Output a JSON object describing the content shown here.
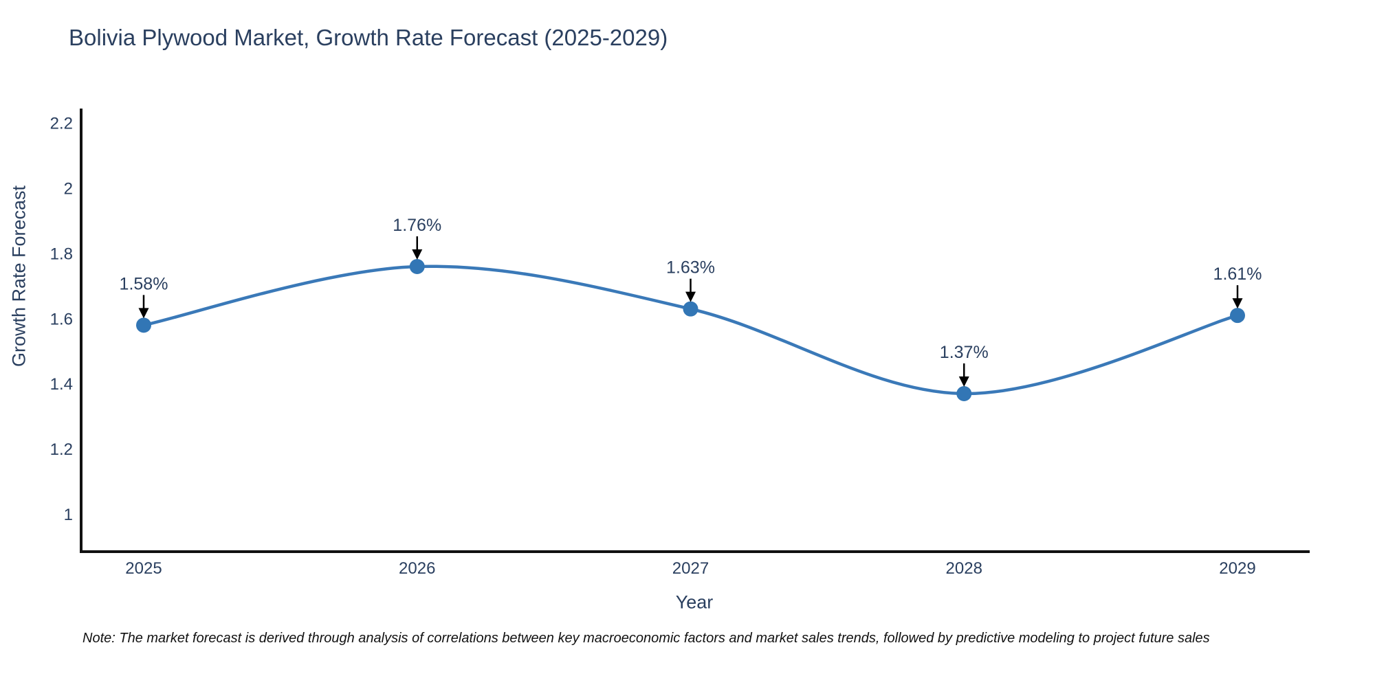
{
  "title": "Bolivia Plywood Market, Growth Rate Forecast (2025-2029)",
  "note": "Note: The market forecast is derived through analysis of correlations between key macroeconomic factors and market sales trends, followed by predictive modeling to project future sales",
  "chart_data": {
    "type": "line",
    "line_shape": "spline",
    "title": "Bolivia Plywood Market, Growth Rate Forecast (2025-2029)",
    "xlabel": "Year",
    "ylabel": "Growth Rate Forecast",
    "categories": [
      "2025",
      "2026",
      "2027",
      "2028",
      "2029"
    ],
    "series": [
      {
        "name": "Growth Rate Forecast",
        "values": [
          1.58,
          1.76,
          1.63,
          1.37,
          1.61
        ]
      }
    ],
    "point_labels": [
      "1.58%",
      "1.76%",
      "1.63%",
      "1.37%",
      "1.61%"
    ],
    "annotations_style": "label above point with black down arrow",
    "yticks": [
      1,
      1.2,
      1.4,
      1.6,
      1.8,
      2,
      2.2
    ],
    "ylim": [
      0.885,
      2.245
    ],
    "grid": false,
    "legend_position": "none",
    "colors": {
      "line": "#3a79b8",
      "marker": "#3276b5",
      "axis": "#111111",
      "text": "#2a3f5f",
      "arrow": "#000000",
      "background": "#ffffff"
    }
  }
}
